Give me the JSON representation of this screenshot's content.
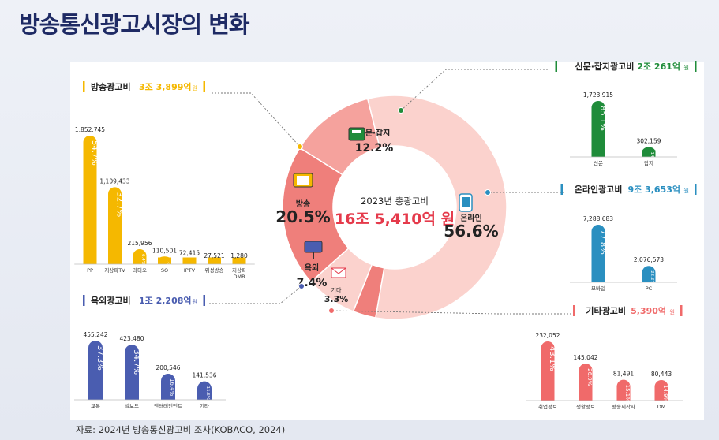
{
  "page": {
    "title": "방송통신광고시장의 변화",
    "source": "자료: 2024년 방송통신광고비 조사(KOBACO, 2024)"
  },
  "colors": {
    "broadcast": "#f5b800",
    "print": "#1f8c3a",
    "online": "#2a8fc0",
    "outdoor": "#4a5db0",
    "other": "#f06a6a",
    "donut_dark": "#ef7f7b",
    "donut_mid": "#f5a29d",
    "donut_light": "#fbd2cd"
  },
  "center": {
    "year_label": "2023년 총광고비",
    "total": "16조 5,410억 원"
  },
  "chart_data": [
    {
      "type": "pie",
      "subtype": "donut",
      "center_label": "2023년 총광고비",
      "center_value": "16조 5,410억 원",
      "slices": [
        {
          "label": "온라인",
          "value": 56.6
        },
        {
          "label": "방송",
          "value": 20.5
        },
        {
          "label": "신문·잡지",
          "value": 12.2
        },
        {
          "label": "옥외",
          "value": 7.4
        },
        {
          "label": "기타",
          "value": 3.3
        }
      ]
    },
    {
      "type": "bar",
      "title": "방송광고비",
      "total": "3조 3,899억 원",
      "color": "#f5b800",
      "categories": [
        "PP",
        "지상파TV",
        "라디오",
        "SO",
        "IPTV",
        "위성방송",
        "지상파 DMB"
      ],
      "values": [
        1852745,
        1109433,
        215956,
        110501,
        72415,
        27521,
        1280
      ],
      "value_labels": [
        "1,852,745",
        "1,109,433",
        "215,956",
        "110,501",
        "72,415",
        "27,521",
        "1,280"
      ],
      "shares": [
        "54.7%",
        "32.7%",
        "6.4%",
        "3.3%",
        "2.1%",
        "",
        ""
      ]
    },
    {
      "type": "bar",
      "title": "옥외광고비",
      "total": "1조 2,208억 원",
      "color": "#4a5db0",
      "categories": [
        "교통",
        "빌보드",
        "엔터테인먼트",
        "기타"
      ],
      "values": [
        455242,
        423480,
        200546,
        141536
      ],
      "value_labels": [
        "455,242",
        "423,480",
        "200,546",
        "141,536"
      ],
      "shares": [
        "37.3%",
        "34.7%",
        "16.4%",
        "11.6%"
      ]
    },
    {
      "type": "bar",
      "title": "신문·잡지광고비",
      "total": "2조 261억 원",
      "color": "#1f8c3a",
      "categories": [
        "신문",
        "잡지"
      ],
      "values": [
        1723915,
        302159
      ],
      "value_labels": [
        "1,723,915",
        "302,159"
      ],
      "shares": [
        "85.1%",
        "14.9%"
      ]
    },
    {
      "type": "bar",
      "title": "온라인광고비",
      "total": "9조 3,653억 원",
      "color": "#2a8fc0",
      "categories": [
        "모바일",
        "PC"
      ],
      "values": [
        7288683,
        2076573
      ],
      "value_labels": [
        "7,288,683",
        "2,076,573"
      ],
      "shares": [
        "77.8%",
        "22.2%"
      ]
    },
    {
      "type": "bar",
      "title": "기타광고비",
      "total": "5,390억 원",
      "color": "#f06a6a",
      "categories": [
        "취업정보",
        "생활정보",
        "방송제작사",
        "DM"
      ],
      "values": [
        232052,
        145042,
        81491,
        80443
      ],
      "value_labels": [
        "232,052",
        "145,042",
        "81,491",
        "80,443"
      ],
      "shares": [
        "43.1%",
        "26.9%",
        "15.1%",
        "14.9%"
      ]
    }
  ]
}
